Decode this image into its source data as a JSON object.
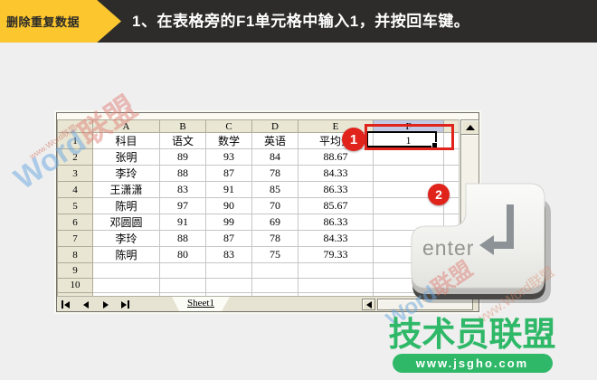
{
  "banner": {
    "tag": "删除重复数据",
    "instruction": "1、在表格旁的F1单元格中输入1，并按回车键。"
  },
  "colors": {
    "accent_yellow": "#fcc72e",
    "banner_dark": "#2d2c2a",
    "callout_red": "#e0241c",
    "logo_green": "#2eb868",
    "header_highlight": "#c3c9e2"
  },
  "spreadsheet": {
    "column_headers": [
      "A",
      "B",
      "C",
      "D",
      "E",
      "F"
    ],
    "selected_cell": "F1",
    "selected_cell_value": "1",
    "rows": [
      {
        "n": "1",
        "cells": [
          "科目",
          "语文",
          "数学",
          "英语",
          "平均分",
          "1"
        ]
      },
      {
        "n": "2",
        "cells": [
          "张明",
          "89",
          "93",
          "84",
          "88.67",
          ""
        ]
      },
      {
        "n": "3",
        "cells": [
          "李玲",
          "88",
          "87",
          "78",
          "84.33",
          ""
        ]
      },
      {
        "n": "4",
        "cells": [
          "王潇潇",
          "83",
          "91",
          "85",
          "86.33",
          ""
        ]
      },
      {
        "n": "5",
        "cells": [
          "陈明",
          "97",
          "90",
          "70",
          "85.67",
          ""
        ]
      },
      {
        "n": "6",
        "cells": [
          "邓圆圆",
          "91",
          "99",
          "69",
          "86.33",
          ""
        ]
      },
      {
        "n": "7",
        "cells": [
          "李玲",
          "88",
          "87",
          "78",
          "84.33",
          ""
        ]
      },
      {
        "n": "8",
        "cells": [
          "陈明",
          "80",
          "83",
          "75",
          "79.33",
          ""
        ]
      },
      {
        "n": "9",
        "cells": [
          "",
          "",
          "",
          "",
          "",
          ""
        ]
      },
      {
        "n": "10",
        "cells": [
          "",
          "",
          "",
          "",
          "",
          ""
        ]
      }
    ],
    "tab_label": "Sheet1"
  },
  "callouts": {
    "step1": "1",
    "step2": "2"
  },
  "enter_key": {
    "label": "enter"
  },
  "logo": {
    "title": "技术员联盟",
    "url": "www.jsgho.com"
  },
  "watermarks": {
    "word": "Word",
    "league": "联盟",
    "small": "www.Word联盟"
  }
}
